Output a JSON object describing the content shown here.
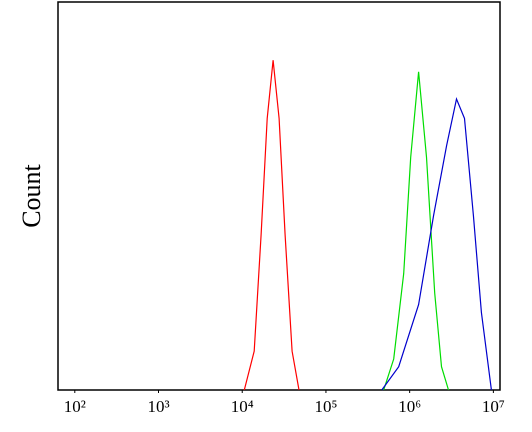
{
  "chart_data": {
    "type": "line",
    "ylabel": "Count",
    "xscale": "log",
    "xlim": [
      63,
      12000000
    ],
    "xticks": [
      {
        "value": 100,
        "label": "10²"
      },
      {
        "value": 1000,
        "label": "10³"
      },
      {
        "value": 10000,
        "label": "10⁴"
      },
      {
        "value": 100000,
        "label": "10⁵"
      },
      {
        "value": 1000000,
        "label": "10⁶"
      },
      {
        "value": 10000000,
        "label": "10⁷"
      }
    ],
    "ylim": [
      0,
      100
    ],
    "series": [
      {
        "color": "#ff0000",
        "x": [
          10600,
          13900,
          16800,
          19900,
          23400,
          27600,
          32500,
          39400,
          47700
        ],
        "values": [
          0,
          10,
          40,
          70,
          85,
          70,
          40,
          10,
          0
        ]
      },
      {
        "color": "#00dd00",
        "x": [
          490000,
          645000,
          849000,
          1030000,
          1280000,
          1590000,
          1990000,
          2400000,
          2910000
        ],
        "values": [
          0,
          8,
          30,
          60,
          82,
          60,
          25,
          6,
          0
        ]
      },
      {
        "color": "#0000cc",
        "x": [
          465000,
          740000,
          1280000,
          1930000,
          2760000,
          3630000,
          4520000,
          5780000,
          7190000,
          9460000
        ],
        "values": [
          0,
          6,
          22,
          45,
          63,
          75,
          70,
          45,
          20,
          0
        ]
      }
    ]
  }
}
